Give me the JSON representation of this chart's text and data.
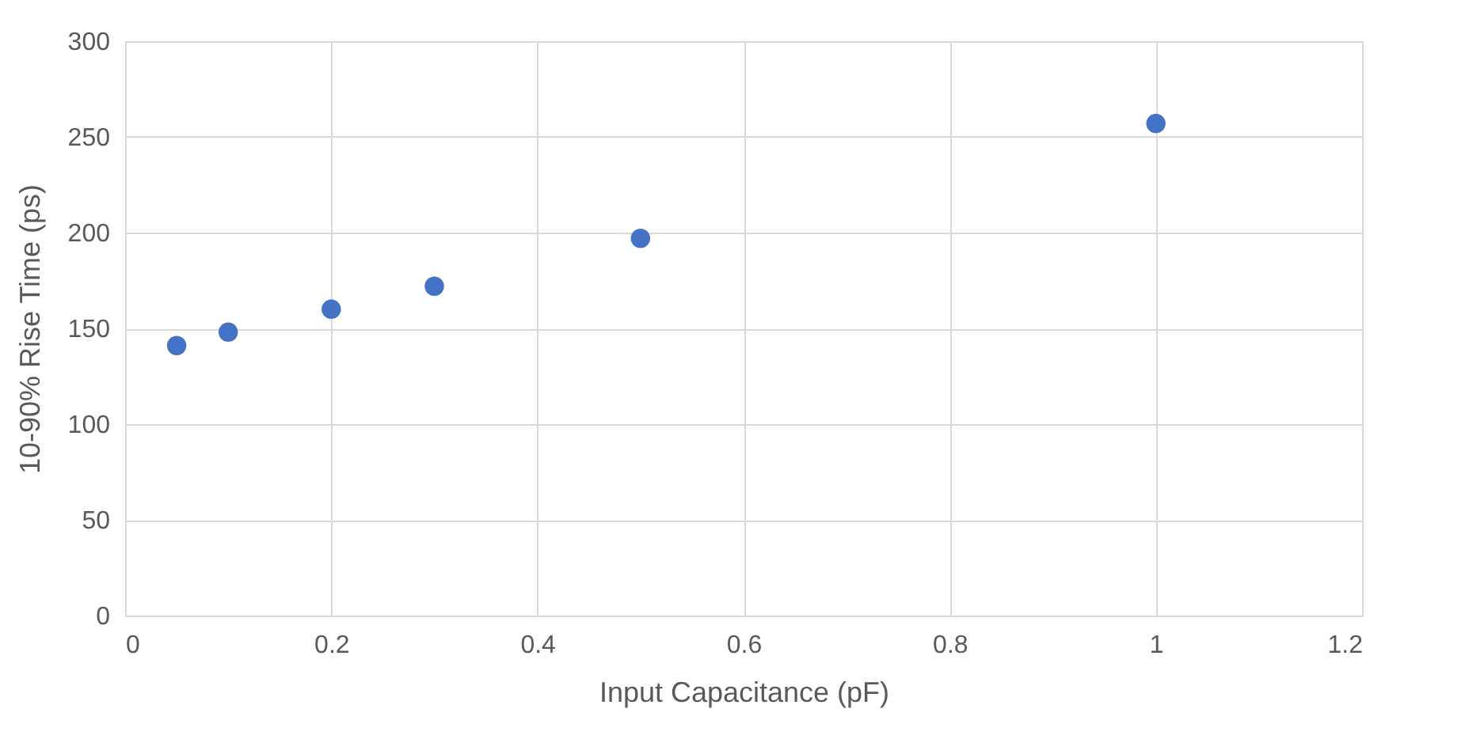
{
  "chart_data": {
    "type": "scatter",
    "xlabel": "Input Capacitance (pF)",
    "ylabel": "10-90% Rise Time (ps)",
    "x": [
      0.05,
      0.1,
      0.2,
      0.3,
      0.5,
      1
    ],
    "series": [
      {
        "color": "#4472c4",
        "values": [
          141,
          148,
          160,
          172,
          197,
          257
        ]
      }
    ],
    "xlim": [
      0,
      1.2
    ],
    "xticks": [
      0,
      0.2,
      0.4,
      0.6,
      0.8,
      1,
      1.2
    ],
    "ylim": [
      0,
      300
    ],
    "yticks": [
      0,
      50,
      100,
      150,
      200,
      250,
      300
    ],
    "grid": true,
    "marker": "circle"
  }
}
